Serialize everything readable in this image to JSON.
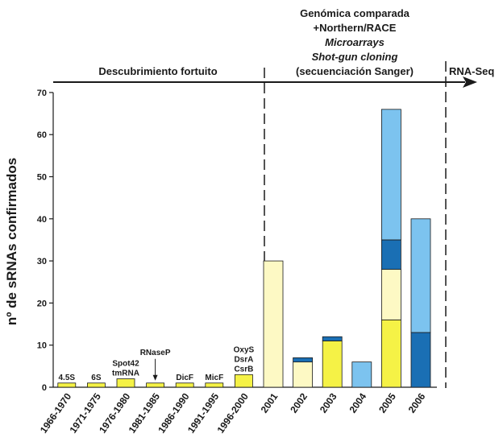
{
  "chart_data": {
    "type": "bar",
    "stacked": true,
    "ylabel": "nº de sRNAs confirmados",
    "ylim": [
      0,
      70
    ],
    "yticks": [
      0,
      10,
      20,
      30,
      40,
      50,
      60,
      70
    ],
    "categories": [
      "1966-1970",
      "1971-1975",
      "1976-1980",
      "1981-1985",
      "1986-1990",
      "1991-1995",
      "1996-2000",
      "2001",
      "2002",
      "2003",
      "2004",
      "2005",
      "2006"
    ],
    "series": [
      {
        "color": "#f5f246",
        "values": [
          1,
          1,
          2,
          1,
          1,
          1,
          3,
          0,
          0,
          11,
          0,
          16,
          0
        ]
      },
      {
        "color": "#fdf9c4",
        "values": [
          0,
          0,
          0,
          0,
          0,
          0,
          0,
          30,
          6,
          0,
          0,
          12,
          0
        ]
      },
      {
        "color": "#1a6fb4",
        "values": [
          0,
          0,
          0,
          0,
          0,
          0,
          0,
          0,
          1,
          1,
          0,
          7,
          13
        ]
      },
      {
        "color": "#7cc3ef",
        "values": [
          0,
          0,
          0,
          0,
          0,
          0,
          0,
          0,
          0,
          0,
          6,
          31,
          27
        ]
      }
    ],
    "bar_annotations": [
      {
        "category": "1966-1970",
        "lines": [
          "4.5S"
        ]
      },
      {
        "category": "1971-1975",
        "lines": [
          "6S"
        ]
      },
      {
        "category": "1976-1980",
        "lines": [
          "Spot42",
          "tmRNA"
        ]
      },
      {
        "category": "1981-1985",
        "lines": [
          "RNaseP"
        ],
        "arrow": true
      },
      {
        "category": "1986-1990",
        "lines": [
          "DicF"
        ]
      },
      {
        "category": "1991-1995",
        "lines": [
          "MicF"
        ]
      },
      {
        "category": "1996-2000",
        "lines": [
          "OxyS",
          "DsrA",
          "CsrB"
        ]
      }
    ],
    "periods": [
      {
        "label": "Descubrimiento fortuito"
      },
      {
        "lines": [
          {
            "text": "Genómica comparada",
            "italic": false
          },
          {
            "text": "+Northern/RACE",
            "italic": false
          },
          {
            "text": "Microarrays",
            "italic": true
          },
          {
            "text": "Shot-gun cloning",
            "italic": true
          },
          {
            "text": "(secuenciación Sanger)",
            "italic": false
          }
        ]
      },
      {
        "label": "RNA-Seq"
      }
    ]
  }
}
